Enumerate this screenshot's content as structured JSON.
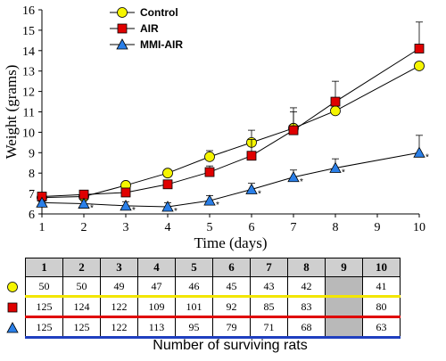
{
  "chart_data": {
    "type": "line",
    "x": [
      1,
      2,
      3,
      4,
      5,
      6,
      7,
      8,
      10
    ],
    "xticks": [
      1,
      2,
      3,
      4,
      5,
      6,
      7,
      8,
      9,
      10
    ],
    "yticks": [
      6,
      7,
      8,
      9,
      10,
      11,
      12,
      13,
      14,
      15,
      16
    ],
    "xlim": [
      1,
      10
    ],
    "ylim": [
      6,
      16
    ],
    "xlabel": "Time (days)",
    "ylabel": "Weight (grams)",
    "grid": false,
    "legend_position": "top-center",
    "series": [
      {
        "name": "Control",
        "marker": "circle",
        "color": "#f5f500",
        "values": [
          6.8,
          6.85,
          7.4,
          8.0,
          8.8,
          9.5,
          10.2,
          11.05,
          13.25
        ],
        "errors": [
          0,
          0,
          0,
          0,
          0.3,
          0.6,
          0.8,
          0.6,
          0
        ],
        "star": [
          false,
          false,
          false,
          false,
          false,
          false,
          false,
          false,
          false
        ]
      },
      {
        "name": "AIR",
        "marker": "square",
        "color": "#e00000",
        "values": [
          6.85,
          6.95,
          7.05,
          7.45,
          8.05,
          8.85,
          10.1,
          11.5,
          14.1
        ],
        "errors": [
          0.15,
          0.2,
          0.2,
          0.2,
          0.3,
          0.8,
          1.1,
          1.0,
          1.3
        ],
        "star": [
          false,
          false,
          false,
          false,
          false,
          false,
          false,
          false,
          false
        ]
      },
      {
        "name": "MMI-AIR",
        "marker": "triangle",
        "color": "#2a7fe8",
        "values": [
          6.55,
          6.5,
          6.4,
          6.35,
          6.65,
          7.2,
          7.8,
          8.25,
          9.0
        ],
        "errors": [
          0.1,
          0.15,
          0.2,
          0.2,
          0.25,
          0.3,
          0.35,
          0.45,
          0.85
        ],
        "star": [
          false,
          true,
          true,
          true,
          true,
          true,
          true,
          true,
          true
        ]
      }
    ],
    "star_text": "*"
  },
  "survival_table": {
    "title": "Number of surviving rats",
    "days": [
      "1",
      "2",
      "3",
      "4",
      "5",
      "6",
      "7",
      "8",
      "9",
      "10"
    ],
    "rows": [
      {
        "marker": "circle",
        "color": "#f5f500",
        "underline": "#f2e600",
        "values": [
          "50",
          "50",
          "49",
          "47",
          "46",
          "45",
          "43",
          "42",
          "",
          "41"
        ]
      },
      {
        "marker": "square",
        "color": "#e00000",
        "underline": "#e00000",
        "values": [
          "125",
          "124",
          "122",
          "109",
          "101",
          "92",
          "85",
          "83",
          "",
          "80"
        ]
      },
      {
        "marker": "triangle",
        "color": "#2a7fe8",
        "underline": "#1f3fbf",
        "values": [
          "125",
          "125",
          "122",
          "113",
          "95",
          "79",
          "71",
          "68",
          "",
          "63"
        ]
      }
    ]
  }
}
